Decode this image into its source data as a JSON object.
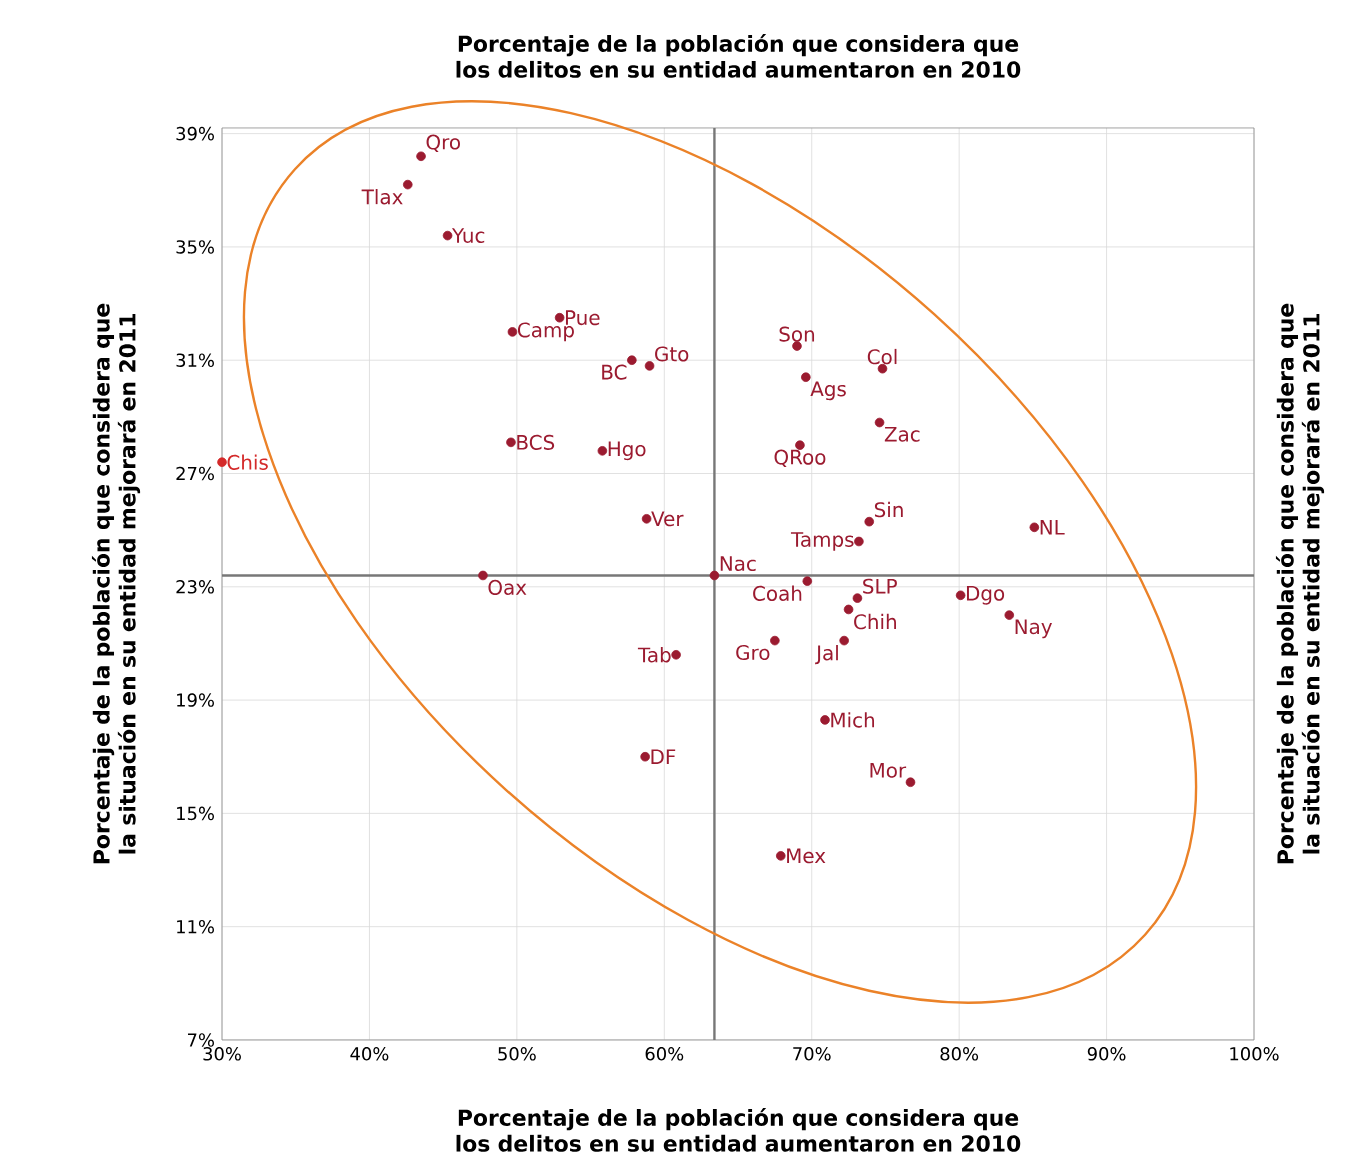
{
  "chart_data": {
    "type": "scatter",
    "title": "Porcentaje de la población que considera que los delitos en su entidad aumentaron en 2010",
    "xlabel": "Porcentaje de la población que considera que los delitos en su entidad aumentaron en 2010",
    "ylabel": "Porcentaje de la población que considera que la situación en su entidad mejorará en 2011",
    "y2label": "Porcentaje de la población que considera que la situación en su entidad mejorará en 2011",
    "xlim": [
      30,
      100
    ],
    "ylim": [
      7,
      39.2
    ],
    "xticks": [
      {
        "value": 30,
        "label": "30%"
      },
      {
        "value": 40,
        "label": "40%"
      },
      {
        "value": 50,
        "label": "50%"
      },
      {
        "value": 60,
        "label": "60%"
      },
      {
        "value": 70,
        "label": "70%"
      },
      {
        "value": 80,
        "label": "80%"
      },
      {
        "value": 90,
        "label": "90%"
      },
      {
        "value": 100,
        "label": "100%"
      }
    ],
    "yticks": [
      {
        "value": 7,
        "label": "7%"
      },
      {
        "value": 11,
        "label": "11%"
      },
      {
        "value": 15,
        "label": "15%"
      },
      {
        "value": 19,
        "label": "19%"
      },
      {
        "value": 23,
        "label": "23%"
      },
      {
        "value": 27,
        "label": "27%"
      },
      {
        "value": 31,
        "label": "31%"
      },
      {
        "value": 35,
        "label": "35%"
      },
      {
        "value": 39,
        "label": "39%"
      }
    ],
    "grid": true,
    "ref_lines": [
      {
        "axis": "x",
        "value": 63.4,
        "color": "#777777"
      },
      {
        "axis": "y",
        "value": 23.4,
        "color": "#777777"
      }
    ],
    "series": [
      {
        "name": "Qro",
        "color": "#9b1b30",
        "x": [
          43.5
        ],
        "values": [
          38.2
        ]
      },
      {
        "name": "Tlax",
        "color": "#9b1b30",
        "x": [
          42.6
        ],
        "values": [
          37.2
        ]
      },
      {
        "name": "Yuc",
        "color": "#9b1b30",
        "x": [
          45.3
        ],
        "values": [
          35.4
        ]
      },
      {
        "name": "Pue",
        "color": "#9b1b30",
        "x": [
          52.9
        ],
        "values": [
          32.5
        ]
      },
      {
        "name": "Camp",
        "color": "#9b1b30",
        "x": [
          49.7
        ],
        "values": [
          32.0
        ]
      },
      {
        "name": "BC",
        "color": "#9b1b30",
        "x": [
          57.8
        ],
        "values": [
          31.0
        ]
      },
      {
        "name": "Gto",
        "color": "#9b1b30",
        "x": [
          59.0
        ],
        "values": [
          30.8
        ]
      },
      {
        "name": "BCS",
        "color": "#9b1b30",
        "x": [
          49.6
        ],
        "values": [
          28.1
        ]
      },
      {
        "name": "Hgo",
        "color": "#9b1b30",
        "x": [
          55.8
        ],
        "values": [
          27.8
        ]
      },
      {
        "name": "Chis",
        "color": "#d42a2a",
        "x": [
          30.0
        ],
        "values": [
          27.4
        ]
      },
      {
        "name": "Ver",
        "color": "#9b1b30",
        "x": [
          58.8
        ],
        "values": [
          25.4
        ]
      },
      {
        "name": "Oax",
        "color": "#9b1b30",
        "x": [
          47.7
        ],
        "values": [
          23.4
        ]
      },
      {
        "name": "Nac",
        "color": "#9b1b30",
        "x": [
          63.4
        ],
        "values": [
          23.4
        ]
      },
      {
        "name": "Son",
        "color": "#9b1b30",
        "x": [
          69.0
        ],
        "values": [
          31.5
        ]
      },
      {
        "name": "Col",
        "color": "#9b1b30",
        "x": [
          74.8
        ],
        "values": [
          30.7
        ]
      },
      {
        "name": "Ags",
        "color": "#9b1b30",
        "x": [
          69.6
        ],
        "values": [
          30.4
        ]
      },
      {
        "name": "Zac",
        "color": "#9b1b30",
        "x": [
          74.6
        ],
        "values": [
          28.8
        ]
      },
      {
        "name": "QRoo",
        "color": "#9b1b30",
        "x": [
          69.2
        ],
        "values": [
          28.0
        ]
      },
      {
        "name": "Sin",
        "color": "#9b1b30",
        "x": [
          73.9
        ],
        "values": [
          25.3
        ]
      },
      {
        "name": "Tamps",
        "color": "#9b1b30",
        "x": [
          73.2
        ],
        "values": [
          24.6
        ]
      },
      {
        "name": "NL",
        "color": "#9b1b30",
        "x": [
          85.1
        ],
        "values": [
          25.1
        ]
      },
      {
        "name": "Coah",
        "color": "#9b1b30",
        "x": [
          69.7
        ],
        "values": [
          23.2
        ]
      },
      {
        "name": "SLP",
        "color": "#9b1b30",
        "x": [
          73.1
        ],
        "values": [
          22.6
        ]
      },
      {
        "name": "Chih",
        "color": "#9b1b30",
        "x": [
          72.5
        ],
        "values": [
          22.2
        ]
      },
      {
        "name": "Dgo",
        "color": "#9b1b30",
        "x": [
          80.1
        ],
        "values": [
          22.7
        ]
      },
      {
        "name": "Nay",
        "color": "#9b1b30",
        "x": [
          83.4
        ],
        "values": [
          22.0
        ]
      },
      {
        "name": "Gro",
        "color": "#9b1b30",
        "x": [
          67.5
        ],
        "values": [
          21.1
        ]
      },
      {
        "name": "Jal",
        "color": "#9b1b30",
        "x": [
          72.2
        ],
        "values": [
          21.1
        ]
      },
      {
        "name": "Tab",
        "color": "#9b1b30",
        "x": [
          60.8
        ],
        "values": [
          20.6
        ]
      },
      {
        "name": "Mich",
        "color": "#9b1b30",
        "x": [
          70.9
        ],
        "values": [
          18.3
        ]
      },
      {
        "name": "DF",
        "color": "#9b1b30",
        "x": [
          58.7
        ],
        "values": [
          17.0
        ]
      },
      {
        "name": "Mor",
        "color": "#9b1b30",
        "x": [
          76.7
        ],
        "values": [
          16.1
        ]
      },
      {
        "name": "Mex",
        "color": "#9b1b30",
        "x": [
          67.9
        ],
        "values": [
          13.5
        ]
      }
    ]
  }
}
